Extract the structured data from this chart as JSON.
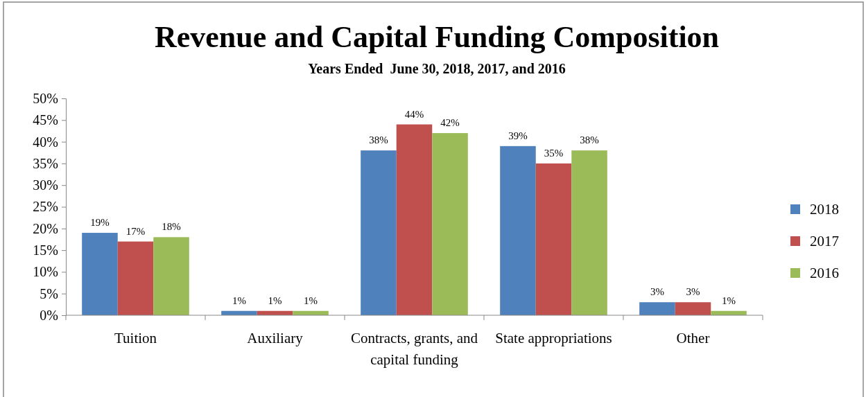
{
  "chart_data": {
    "type": "bar",
    "title": "Revenue and Capital Funding Composition",
    "subtitle": "Years Ended  June 30, 2018, 2017, and 2016",
    "categories": [
      "Tuition",
      "Auxiliary",
      "Contracts, grants, and capital funding",
      "State appropriations",
      "Other"
    ],
    "series": [
      {
        "name": "2018",
        "color": "#4f81bd",
        "values": [
          19,
          1,
          38,
          39,
          3
        ],
        "value_labels": [
          "19%",
          "1%",
          "38%",
          "39%",
          "3%"
        ]
      },
      {
        "name": "2017",
        "color": "#c0504d",
        "values": [
          17,
          1,
          44,
          35,
          3
        ],
        "value_labels": [
          "17%",
          "1%",
          "44%",
          "35%",
          "3%"
        ]
      },
      {
        "name": "2016",
        "color": "#9bbb59",
        "values": [
          18,
          1,
          42,
          38,
          1
        ],
        "value_labels": [
          "18%",
          "1%",
          "42%",
          "38%",
          "1%"
        ]
      }
    ],
    "ylim": [
      0,
      50
    ],
    "yticks": [
      {
        "value": 0,
        "label": "0%"
      },
      {
        "value": 5,
        "label": "5%"
      },
      {
        "value": 10,
        "label": "10%"
      },
      {
        "value": 15,
        "label": "15%"
      },
      {
        "value": 20,
        "label": "20%"
      },
      {
        "value": 25,
        "label": "25%"
      },
      {
        "value": 30,
        "label": "30%"
      },
      {
        "value": 35,
        "label": "35%"
      },
      {
        "value": 40,
        "label": "40%"
      },
      {
        "value": 45,
        "label": "45%"
      },
      {
        "value": 50,
        "label": "50%"
      }
    ],
    "grid": false,
    "legend": "right"
  }
}
